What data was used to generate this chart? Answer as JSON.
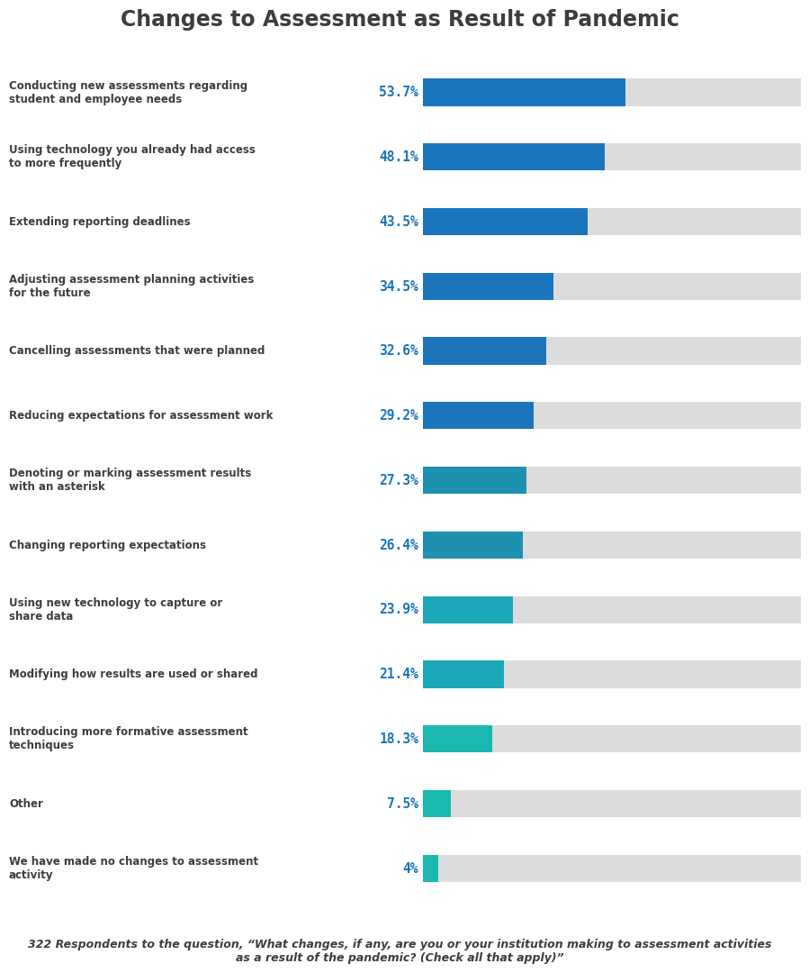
{
  "title": "Changes to Assessment as Result of Pandemic",
  "categories": [
    "Conducting new assessments regarding\nstudent and employee needs",
    "Using technology you already had access\nto more frequently",
    "Extending reporting deadlines",
    "Adjusting assessment planning activities\nfor the future",
    "Cancelling assessments that were planned",
    "Reducing expectations for assessment work",
    "Denoting or marking assessment results\nwith an asterisk",
    "Changing reporting expectations",
    "Using new technology to capture or\nshare data",
    "Modifying how results are used or shared",
    "Introducing more formative assessment\ntechniques",
    "Other",
    "We have made no changes to assessment\nactivity"
  ],
  "values": [
    53.7,
    48.1,
    43.5,
    34.5,
    32.6,
    29.2,
    27.3,
    26.4,
    23.9,
    21.4,
    18.3,
    7.5,
    4.0
  ],
  "value_labels": [
    "53.7%",
    "48.1%",
    "43.5%",
    "34.5%",
    "32.6%",
    "29.2%",
    "27.3%",
    "26.4%",
    "23.9%",
    "21.4%",
    "18.3%",
    "7.5%",
    "4%"
  ],
  "bar_colors": [
    "#1b75bc",
    "#1b75bc",
    "#1b75bc",
    "#1b75bc",
    "#1b75bc",
    "#1b75bc",
    "#1e90b0",
    "#1e90b0",
    "#1ba8b8",
    "#1ba8b8",
    "#1bb8b0",
    "#1bb8b0",
    "#1bb8b0"
  ],
  "bg_bar_color": "#dcdcdc",
  "max_value": 100,
  "bar_height": 0.42,
  "value_color": "#1b75bc",
  "label_color": "#3d3d3d",
  "title_color": "#3d3d3d",
  "footnote": "322 Respondents to the question, “What changes, if any, are you or your institution making to assessment activities\nas a result of the pandemic? (Check all that apply)”",
  "background_color": "#ffffff",
  "label_fontsize": 8.5,
  "value_fontsize": 10.5,
  "title_fontsize": 17
}
